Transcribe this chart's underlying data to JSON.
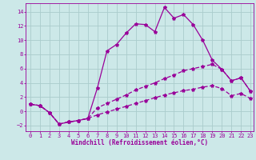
{
  "xlabel": "Windchill (Refroidissement éolien,°C)",
  "xlim_min": -0.5,
  "xlim_max": 23.3,
  "ylim_min": -2.8,
  "ylim_max": 15.2,
  "xticks": [
    0,
    1,
    2,
    3,
    4,
    5,
    6,
    7,
    8,
    9,
    10,
    11,
    12,
    13,
    14,
    15,
    16,
    17,
    18,
    19,
    20,
    21,
    22,
    23
  ],
  "yticks": [
    -2,
    0,
    2,
    4,
    6,
    8,
    10,
    12,
    14
  ],
  "bg_color": "#cce8e8",
  "grid_color": "#aacccc",
  "line_color": "#990099",
  "line1_x": [
    0,
    1,
    2,
    3,
    4,
    5,
    6,
    7,
    8,
    9,
    10,
    11,
    12,
    13,
    14,
    15,
    16,
    17,
    18,
    19,
    20,
    21,
    22,
    23
  ],
  "line1_y": [
    1.0,
    0.8,
    -0.2,
    -1.8,
    -1.5,
    -1.3,
    -1.0,
    3.3,
    8.5,
    9.4,
    11.0,
    12.3,
    12.2,
    11.2,
    14.6,
    13.1,
    13.6,
    12.2,
    10.0,
    7.2,
    5.9,
    4.3,
    4.7,
    2.8
  ],
  "line2_x": [
    0,
    1,
    2,
    3,
    4,
    5,
    6,
    7,
    8,
    9,
    10,
    11,
    12,
    13,
    14,
    15,
    16,
    17,
    18,
    19,
    20,
    21,
    22,
    23
  ],
  "line2_y": [
    1.0,
    0.8,
    -0.2,
    -1.8,
    -1.5,
    -1.3,
    -1.0,
    0.5,
    1.1,
    1.7,
    2.3,
    3.0,
    3.5,
    4.0,
    4.6,
    5.1,
    5.7,
    6.0,
    6.3,
    6.6,
    5.9,
    4.3,
    4.7,
    2.8
  ],
  "line3_x": [
    0,
    1,
    2,
    3,
    4,
    5,
    6,
    7,
    8,
    9,
    10,
    11,
    12,
    13,
    14,
    15,
    16,
    17,
    18,
    19,
    20,
    21,
    22,
    23
  ],
  "line3_y": [
    1.0,
    0.8,
    -0.2,
    -1.8,
    -1.5,
    -1.3,
    -1.0,
    -0.5,
    -0.1,
    0.3,
    0.7,
    1.1,
    1.5,
    1.9,
    2.3,
    2.6,
    2.9,
    3.1,
    3.4,
    3.6,
    3.2,
    2.2,
    2.5,
    1.8
  ]
}
